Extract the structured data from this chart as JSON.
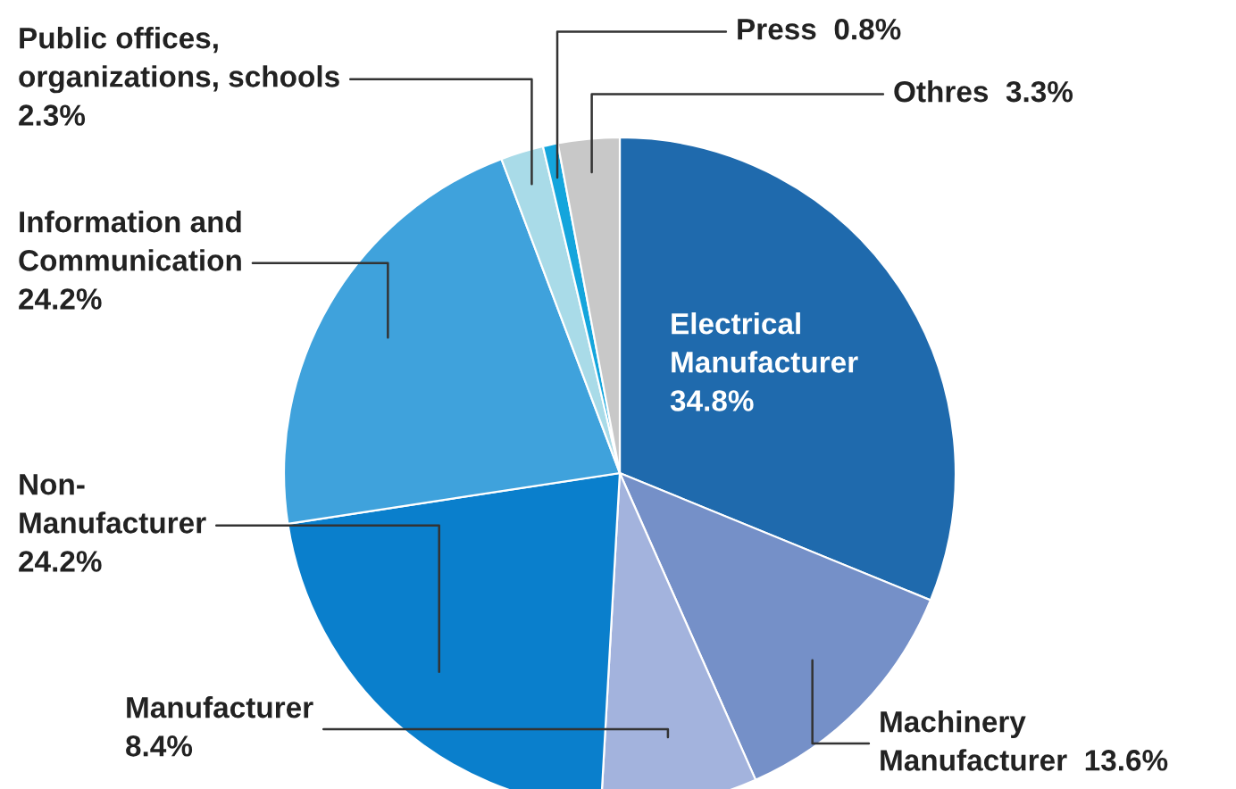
{
  "chart_data": {
    "type": "pie",
    "categories": [
      "Electrical\nManufacturer",
      "Machinery\nManufacturer",
      "Manufacturer",
      "Non-\nManufacturer",
      "Information and\nCommunication",
      "Public offices,\norganizations, schools",
      "Press",
      "Othres"
    ],
    "values": [
      34.8,
      13.6,
      8.4,
      24.2,
      24.2,
      2.3,
      0.8,
      3.3
    ],
    "colors": [
      "#1f6aad",
      "#7590c8",
      "#a3b3dd",
      "#0a7fcc",
      "#3fa2dc",
      "#a9dbe8",
      "#14a5dc",
      "#c8c8c8"
    ],
    "value_labels": [
      "34.8%",
      "13.6%",
      "8.4%",
      "24.2%",
      "24.2%",
      "2.3%",
      "0.8%",
      "3.3%"
    ]
  }
}
